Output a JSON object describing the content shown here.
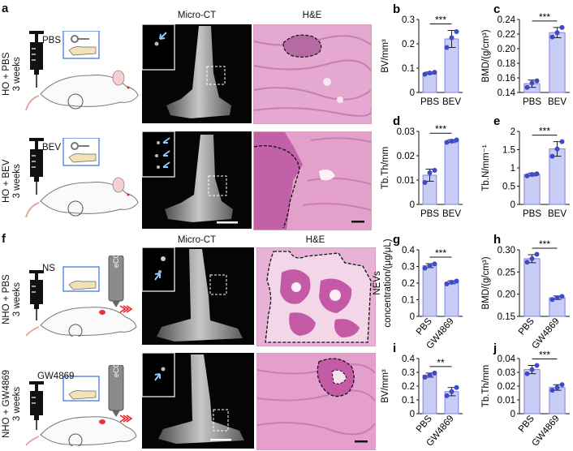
{
  "panels": {
    "a": {
      "label": "a",
      "rows": [
        {
          "condition": "HO + PBS",
          "duration": "3 weeks",
          "drug": "PBS"
        },
        {
          "condition": "HO + BEV",
          "duration": "3 weeks",
          "drug": "BEV"
        }
      ],
      "col_microct": "Micro-CT",
      "col_he": "H&E"
    },
    "f": {
      "label": "f",
      "rows": [
        {
          "condition": "NHO + PBS",
          "duration": "3 weeks",
          "drug": "NS",
          "device": "eCCI"
        },
        {
          "condition": "NHO + GW4869",
          "duration": "3 weeks",
          "drug": "GW4869",
          "device": "eCCI"
        }
      ],
      "col_microct": "Micro-CT",
      "col_he": "H&E"
    }
  },
  "colors": {
    "bar_fill": "#c9cdf5",
    "bar_edge": "#7d83e0",
    "dot": "#3f49c9",
    "he_pink": "#e8a6cf",
    "he_dark": "#b04c9a"
  },
  "chart_data": [
    {
      "id": "b",
      "label": "b",
      "type": "bar",
      "categories": [
        "PBS",
        "BEV"
      ],
      "ylabel": "BV/mm³",
      "ylim": [
        0,
        0.3
      ],
      "yticks": [
        "0",
        "0.1",
        "0.2",
        "0.3"
      ],
      "yticks_v": [
        0,
        0.1,
        0.2,
        0.3
      ],
      "values": [
        0.08,
        0.22
      ],
      "points": [
        [
          0.075,
          0.08,
          0.083
        ],
        [
          0.185,
          0.225,
          0.25
        ]
      ],
      "errors": [
        0.004,
        0.035
      ],
      "sig": "***"
    },
    {
      "id": "c",
      "label": "c",
      "type": "bar",
      "categories": [
        "PBS",
        "BEV"
      ],
      "ylabel": "BMD/(g/cm³)",
      "ylim": [
        0.14,
        0.24
      ],
      "yticks": [
        "0.14",
        "0.16",
        "0.18",
        "0.20",
        "0.22",
        "0.24"
      ],
      "yticks_v": [
        0.14,
        0.16,
        0.18,
        0.2,
        0.22,
        0.24
      ],
      "values": [
        0.152,
        0.222
      ],
      "points": [
        [
          0.147,
          0.153,
          0.156
        ],
        [
          0.216,
          0.222,
          0.229
        ]
      ],
      "errors": [
        0.005,
        0.007
      ],
      "sig": "***"
    },
    {
      "id": "d",
      "label": "d",
      "type": "bar",
      "categories": [
        "PBS",
        "BEV"
      ],
      "ylabel": "Tb.Th/mm",
      "ylim": [
        0,
        0.03
      ],
      "yticks": [
        "0",
        "0.01",
        "0.02",
        "0.03"
      ],
      "yticks_v": [
        0,
        0.01,
        0.02,
        0.03
      ],
      "values": [
        0.012,
        0.026
      ],
      "points": [
        [
          0.009,
          0.013,
          0.014
        ],
        [
          0.0255,
          0.026,
          0.0265
        ]
      ],
      "errors": [
        0.0025,
        0.0006
      ],
      "sig": "***"
    },
    {
      "id": "e",
      "label": "e",
      "type": "bar",
      "categories": [
        "PBS",
        "BEV"
      ],
      "ylabel": "Tb.N/mm⁻¹",
      "ylim": [
        0,
        2
      ],
      "yticks": [
        "0",
        "0.5",
        "1",
        "1.5",
        "2"
      ],
      "yticks_v": [
        0,
        0.5,
        1,
        1.5,
        2
      ],
      "values": [
        0.82,
        1.52
      ],
      "points": [
        [
          0.78,
          0.82,
          0.84
        ],
        [
          1.32,
          1.52,
          1.72
        ]
      ],
      "errors": [
        0.04,
        0.2
      ],
      "sig": "***"
    },
    {
      "id": "g",
      "label": "g",
      "type": "bar",
      "categories": [
        "PBS",
        "GW4869"
      ],
      "ylabel": "NEVs concentration/(μg/μL)",
      "ylim": [
        0,
        0.4
      ],
      "yticks": [
        "0",
        "0.1",
        "0.2",
        "0.3",
        "0.4"
      ],
      "yticks_v": [
        0,
        0.1,
        0.2,
        0.3,
        0.4
      ],
      "values": [
        0.305,
        0.205
      ],
      "points": [
        [
          0.29,
          0.305,
          0.315
        ],
        [
          0.195,
          0.205,
          0.212
        ]
      ],
      "errors": [
        0.012,
        0.009
      ],
      "sig": "***"
    },
    {
      "id": "h",
      "label": "h",
      "type": "bar",
      "categories": [
        "PBS",
        "GW4869"
      ],
      "ylabel": "BMD/(g/cm³)",
      "ylim": [
        0.15,
        0.3
      ],
      "yticks": [
        "0.15",
        "0.20",
        "0.25",
        "0.30"
      ],
      "yticks_v": [
        0.15,
        0.2,
        0.25,
        0.3
      ],
      "values": [
        0.28,
        0.192
      ],
      "points": [
        [
          0.272,
          0.28,
          0.29
        ],
        [
          0.188,
          0.192,
          0.195
        ]
      ],
      "errors": [
        0.009,
        0.004
      ],
      "sig": "***"
    },
    {
      "id": "i",
      "label": "i",
      "type": "bar",
      "categories": [
        "PBS",
        "GW4869"
      ],
      "ylabel": "BV/mm³",
      "ylim": [
        0,
        0.4
      ],
      "yticks": [
        "0",
        "0.1",
        "0.2",
        "0.3",
        "0.4"
      ],
      "yticks_v": [
        0,
        0.1,
        0.2,
        0.3,
        0.4
      ],
      "values": [
        0.28,
        0.16
      ],
      "points": [
        [
          0.265,
          0.28,
          0.295
        ],
        [
          0.13,
          0.16,
          0.19
        ]
      ],
      "errors": [
        0.015,
        0.03
      ],
      "sig": "**"
    },
    {
      "id": "j",
      "label": "j",
      "type": "bar",
      "categories": [
        "PBS",
        "GW4869"
      ],
      "ylabel": "Tb.Th/mm",
      "ylim": [
        0,
        0.04
      ],
      "yticks": [
        "0",
        "0.01",
        "0.02",
        "0.03",
        "0.04"
      ],
      "yticks_v": [
        0,
        0.01,
        0.02,
        0.03,
        0.04
      ],
      "values": [
        0.032,
        0.019
      ],
      "points": [
        [
          0.029,
          0.032,
          0.035
        ],
        [
          0.017,
          0.019,
          0.021
        ]
      ],
      "errors": [
        0.003,
        0.002
      ],
      "sig": "***"
    }
  ]
}
